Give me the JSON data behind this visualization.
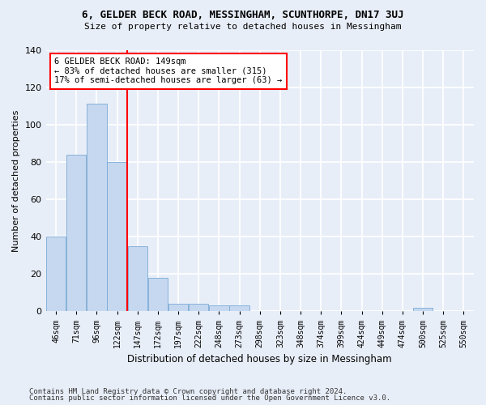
{
  "title1": "6, GELDER BECK ROAD, MESSINGHAM, SCUNTHORPE, DN17 3UJ",
  "title2": "Size of property relative to detached houses in Messingham",
  "xlabel": "Distribution of detached houses by size in Messingham",
  "ylabel": "Number of detached properties",
  "bar_labels": [
    "46sqm",
    "71sqm",
    "96sqm",
    "122sqm",
    "147sqm",
    "172sqm",
    "197sqm",
    "222sqm",
    "248sqm",
    "273sqm",
    "298sqm",
    "323sqm",
    "348sqm",
    "374sqm",
    "399sqm",
    "424sqm",
    "449sqm",
    "474sqm",
    "500sqm",
    "525sqm",
    "550sqm"
  ],
  "bar_values": [
    40,
    84,
    111,
    80,
    35,
    18,
    4,
    4,
    3,
    3,
    0,
    0,
    0,
    0,
    0,
    0,
    0,
    0,
    2,
    0,
    0
  ],
  "bar_color": "#c5d8f0",
  "bar_edge_color": "#7aaad4",
  "vline_color": "red",
  "vline_index": 4,
  "ylim": [
    0,
    140
  ],
  "yticks": [
    0,
    20,
    40,
    60,
    80,
    100,
    120,
    140
  ],
  "annotation_text": "6 GELDER BECK ROAD: 149sqm\n← 83% of detached houses are smaller (315)\n17% of semi-detached houses are larger (63) →",
  "annotation_box_color": "white",
  "annotation_box_edgecolor": "red",
  "footer1": "Contains HM Land Registry data © Crown copyright and database right 2024.",
  "footer2": "Contains public sector information licensed under the Open Government Licence v3.0.",
  "background_color": "#e8eef8",
  "grid_color": "white"
}
